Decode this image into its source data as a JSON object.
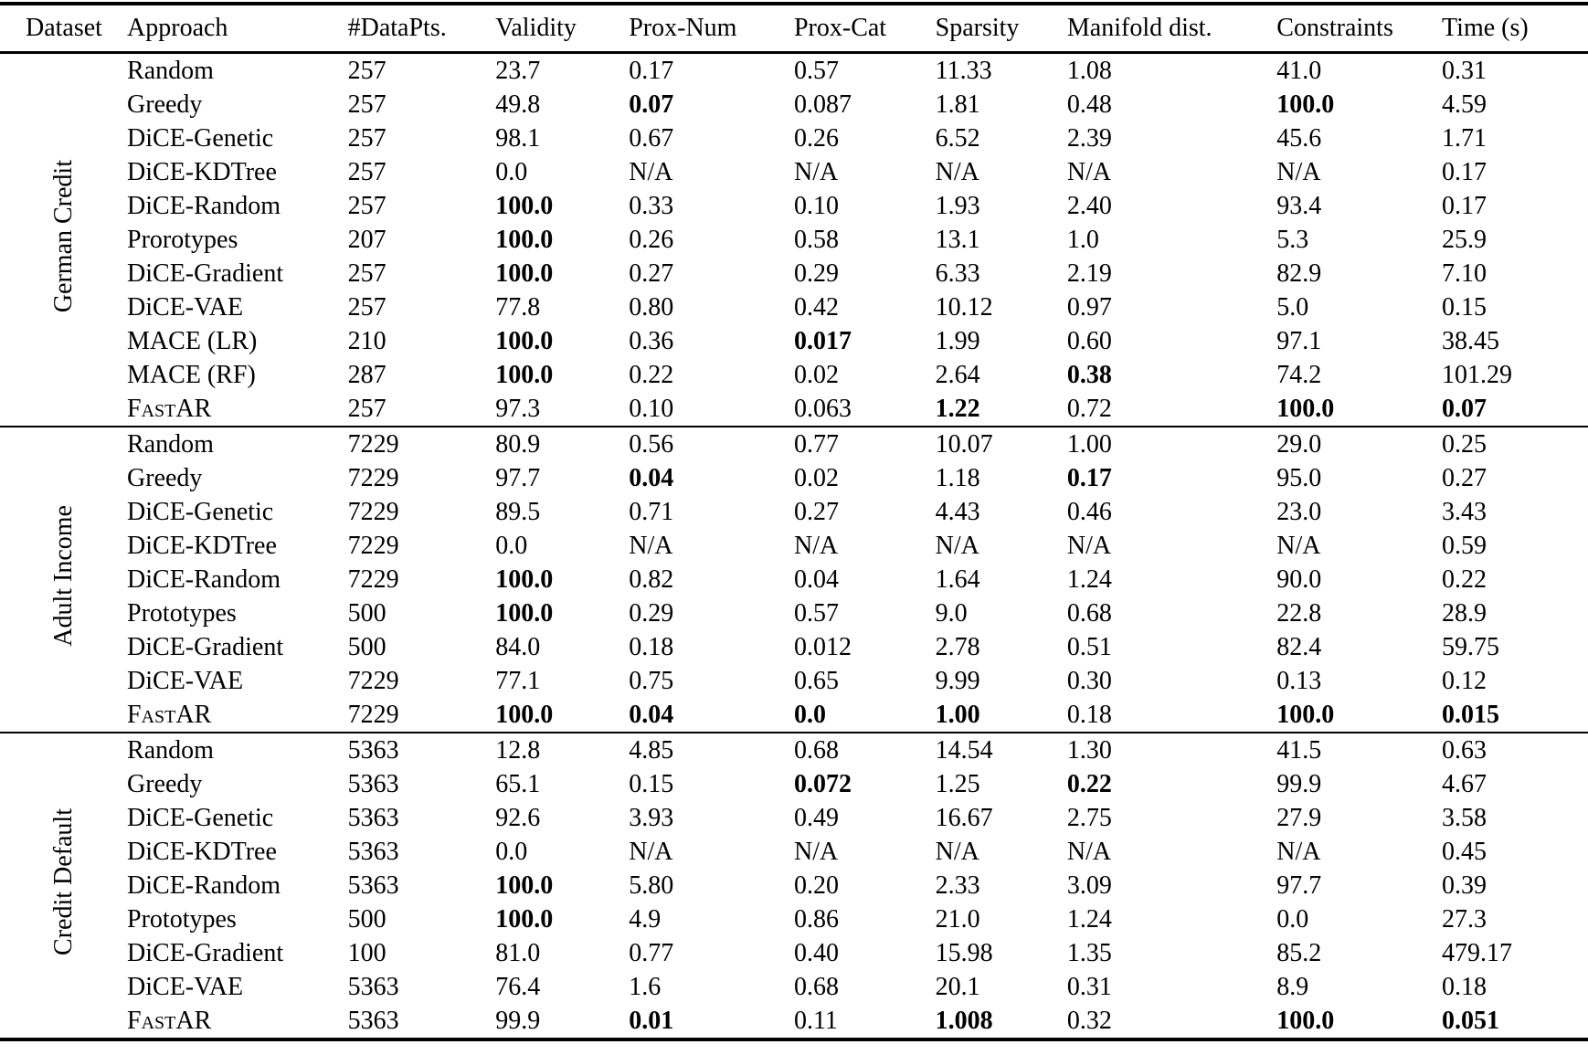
{
  "table": {
    "headers": [
      "Dataset",
      "Approach",
      "#DataPts.",
      "Validity",
      "Prox-Num",
      "Prox-Cat",
      "Sparsity",
      "Manifold dist.",
      "Constraints",
      "Time (s)"
    ],
    "na_text": "N/A",
    "groups": [
      {
        "dataset": "German Credit",
        "rows": [
          {
            "approach": "Random",
            "cells": [
              "257",
              "23.7",
              "0.17",
              "0.57",
              "11.33",
              "1.08",
              "41.0",
              "0.31"
            ],
            "bold": []
          },
          {
            "approach": "Greedy",
            "cells": [
              "257",
              "49.8",
              "0.07",
              "0.087",
              "1.81",
              "0.48",
              "100.0",
              "4.59"
            ],
            "bold": [
              2,
              6
            ]
          },
          {
            "approach": "DiCE-Genetic",
            "cells": [
              "257",
              "98.1",
              "0.67",
              "0.26",
              "6.52",
              "2.39",
              "45.6",
              "1.71"
            ],
            "bold": []
          },
          {
            "approach": "DiCE-KDTree",
            "cells": [
              "257",
              "0.0",
              "N/A",
              "N/A",
              "N/A",
              "N/A",
              "N/A",
              "0.17"
            ],
            "bold": []
          },
          {
            "approach": "DiCE-Random",
            "cells": [
              "257",
              "100.0",
              "0.33",
              "0.10",
              "1.93",
              "2.40",
              "93.4",
              "0.17"
            ],
            "bold": [
              1
            ]
          },
          {
            "approach": "Prorotypes",
            "cells": [
              "207",
              "100.0",
              "0.26",
              "0.58",
              "13.1",
              "1.0",
              "5.3",
              "25.9"
            ],
            "bold": [
              1
            ]
          },
          {
            "approach": "DiCE-Gradient",
            "cells": [
              "257",
              "100.0",
              "0.27",
              "0.29",
              "6.33",
              "2.19",
              "82.9",
              "7.10"
            ],
            "bold": [
              1
            ]
          },
          {
            "approach": "DiCE-VAE",
            "cells": [
              "257",
              "77.8",
              "0.80",
              "0.42",
              "10.12",
              "0.97",
              "5.0",
              "0.15"
            ],
            "bold": []
          },
          {
            "approach": "MACE (LR)",
            "cells": [
              "210",
              "100.0",
              "0.36",
              "0.017",
              "1.99",
              "0.60",
              "97.1",
              "38.45"
            ],
            "bold": [
              1,
              3
            ]
          },
          {
            "approach": "MACE (RF)",
            "cells": [
              "287",
              "100.0",
              "0.22",
              "0.02",
              "2.64",
              "0.38",
              "74.2",
              "101.29"
            ],
            "bold": [
              1,
              5
            ]
          },
          {
            "approach": "FastAR",
            "sc": true,
            "cells": [
              "257",
              "97.3",
              "0.10",
              "0.063",
              "1.22",
              "0.72",
              "100.0",
              "0.07"
            ],
            "bold": [
              4,
              6,
              7
            ]
          }
        ]
      },
      {
        "dataset": "Adult Income",
        "rows": [
          {
            "approach": "Random",
            "cells": [
              "7229",
              "80.9",
              "0.56",
              "0.77",
              "10.07",
              "1.00",
              "29.0",
              "0.25"
            ],
            "bold": []
          },
          {
            "approach": "Greedy",
            "cells": [
              "7229",
              "97.7",
              "0.04",
              "0.02",
              "1.18",
              "0.17",
              "95.0",
              "0.27"
            ],
            "bold": [
              2,
              5
            ]
          },
          {
            "approach": "DiCE-Genetic",
            "cells": [
              "7229",
              "89.5",
              "0.71",
              "0.27",
              "4.43",
              "0.46",
              "23.0",
              "3.43"
            ],
            "bold": []
          },
          {
            "approach": "DiCE-KDTree",
            "cells": [
              "7229",
              "0.0",
              "N/A",
              "N/A",
              "N/A",
              "N/A",
              "N/A",
              "0.59"
            ],
            "bold": []
          },
          {
            "approach": "DiCE-Random",
            "cells": [
              "7229",
              "100.0",
              "0.82",
              "0.04",
              "1.64",
              "1.24",
              "90.0",
              "0.22"
            ],
            "bold": [
              1
            ]
          },
          {
            "approach": "Prototypes",
            "cells": [
              "500",
              "100.0",
              "0.29",
              "0.57",
              "9.0",
              "0.68",
              "22.8",
              "28.9"
            ],
            "bold": [
              1
            ]
          },
          {
            "approach": "DiCE-Gradient",
            "cells": [
              "500",
              "84.0",
              "0.18",
              "0.012",
              "2.78",
              "0.51",
              "82.4",
              "59.75"
            ],
            "bold": []
          },
          {
            "approach": "DiCE-VAE",
            "cells": [
              "7229",
              "77.1",
              "0.75",
              "0.65",
              "9.99",
              "0.30",
              "0.13",
              "0.12"
            ],
            "bold": []
          },
          {
            "approach": "FastAR",
            "sc": true,
            "cells": [
              "7229",
              "100.0",
              "0.04",
              "0.0",
              "1.00",
              "0.18",
              "100.0",
              "0.015"
            ],
            "bold": [
              1,
              2,
              3,
              4,
              6,
              7
            ]
          }
        ]
      },
      {
        "dataset": "Credit Default",
        "rows": [
          {
            "approach": "Random",
            "cells": [
              "5363",
              "12.8",
              "4.85",
              "0.68",
              "14.54",
              "1.30",
              "41.5",
              "0.63"
            ],
            "bold": []
          },
          {
            "approach": "Greedy",
            "cells": [
              "5363",
              "65.1",
              "0.15",
              "0.072",
              "1.25",
              "0.22",
              "99.9",
              "4.67"
            ],
            "bold": [
              3,
              5
            ]
          },
          {
            "approach": "DiCE-Genetic",
            "cells": [
              "5363",
              "92.6",
              "3.93",
              "0.49",
              "16.67",
              "2.75",
              "27.9",
              "3.58"
            ],
            "bold": []
          },
          {
            "approach": "DiCE-KDTree",
            "cells": [
              "5363",
              "0.0",
              "N/A",
              "N/A",
              "N/A",
              "N/A",
              "N/A",
              "0.45"
            ],
            "bold": []
          },
          {
            "approach": "DiCE-Random",
            "cells": [
              "5363",
              "100.0",
              "5.80",
              "0.20",
              "2.33",
              "3.09",
              "97.7",
              "0.39"
            ],
            "bold": [
              1
            ]
          },
          {
            "approach": "Prototypes",
            "cells": [
              "500",
              "100.0",
              "4.9",
              "0.86",
              "21.0",
              "1.24",
              "0.0",
              "27.3"
            ],
            "bold": [
              1
            ]
          },
          {
            "approach": "DiCE-Gradient",
            "cells": [
              "100",
              "81.0",
              "0.77",
              "0.40",
              "15.98",
              "1.35",
              "85.2",
              "479.17"
            ],
            "bold": []
          },
          {
            "approach": "DiCE-VAE",
            "cells": [
              "5363",
              "76.4",
              "1.6",
              "0.68",
              "20.1",
              "0.31",
              "8.9",
              "0.18"
            ],
            "bold": []
          },
          {
            "approach": "FastAR",
            "sc": true,
            "cells": [
              "5363",
              "99.9",
              "0.01",
              "0.11",
              "1.008",
              "0.32",
              "100.0",
              "0.051"
            ],
            "bold": [
              2,
              4,
              6,
              7
            ]
          }
        ]
      }
    ]
  }
}
